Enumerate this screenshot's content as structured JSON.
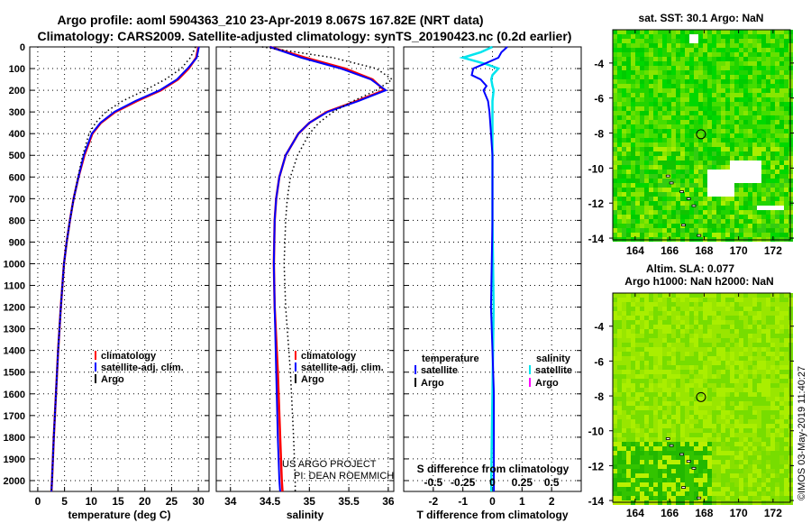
{
  "title_line1": "Argo profile: aoml 5904363_210 23-Apr-2019 8.067S 167.82E (NRT data)",
  "title_line2": "Climatology: CARS2009. Satellite-adjusted climatology: synTS_20190423.nc (0.2d earlier)",
  "credit": "US ARGO PROJECT",
  "pi": "PI: DEAN ROEMMICH",
  "stamp": "©IMOS 03-May-2019 11:40:27",
  "colors": {
    "climatology": "#ff0000",
    "satellite": "#0000ff",
    "argo": "#000000",
    "sal_satellite": "#00e5ee",
    "sal_argo": "#ff00ff"
  },
  "chart_data": [
    {
      "type": "line",
      "xlabel": "temperature (deg C)",
      "ylabel": "",
      "xlim": [
        -1.5,
        32
      ],
      "ylim": [
        2050,
        0
      ],
      "xticks": [
        0,
        5,
        10,
        15,
        20,
        25,
        30
      ],
      "yticks": [
        0,
        100,
        200,
        300,
        400,
        500,
        600,
        700,
        800,
        900,
        1000,
        1100,
        1200,
        1300,
        1400,
        1500,
        1600,
        1700,
        1800,
        1900,
        2000
      ],
      "legend": [
        "climatology",
        "satellite-adj. clim.",
        "Argo"
      ],
      "legend_position": "bottom-center",
      "depth": [
        0,
        50,
        100,
        150,
        200,
        250,
        300,
        350,
        400,
        500,
        600,
        700,
        800,
        900,
        1000,
        1200,
        1400,
        1600,
        1800,
        2000,
        2050
      ],
      "series": [
        {
          "name": "climatology",
          "values": [
            30,
            29.6,
            28.2,
            26.2,
            23,
            18.5,
            14.5,
            11.8,
            10.2,
            8.7,
            7.6,
            6.7,
            6,
            5.4,
            4.9,
            4.3,
            3.8,
            3.4,
            3,
            2.65,
            2.55
          ]
        },
        {
          "name": "satellite-adj. clim.",
          "values": [
            30.1,
            29.7,
            28,
            26,
            22.8,
            18.2,
            14.3,
            11.7,
            10.1,
            8.6,
            7.6,
            6.7,
            6,
            5.4,
            4.9,
            4.3,
            3.8,
            3.4,
            3,
            2.65,
            2.55
          ]
        },
        {
          "name": "Argo",
          "values": [
            29.5,
            28.5,
            26.8,
            23.8,
            20,
            15.8,
            12.7,
            10.8,
            9.6,
            8.4,
            7.5,
            6.7,
            6,
            5.4,
            4.9,
            4.3,
            3.8,
            3.4,
            3,
            2.65,
            2.55
          ]
        }
      ]
    },
    {
      "type": "line",
      "xlabel": "salinity",
      "xlim": [
        33.82,
        36.07
      ],
      "ylim": [
        2050,
        0
      ],
      "xticks": [
        34,
        34.5,
        35,
        35.5,
        36
      ],
      "xticklabels": [
        "34",
        "34.5",
        "35",
        "35.5",
        "36"
      ],
      "legend": [
        "climatology",
        "satellite-adj. clim.",
        "Argo"
      ],
      "legend_position": "bottom-right",
      "depth": [
        0,
        50,
        100,
        150,
        200,
        250,
        300,
        350,
        400,
        500,
        600,
        700,
        800,
        1000,
        1200,
        1500,
        1800,
        2000,
        2050
      ],
      "series": [
        {
          "name": "climatology",
          "values": [
            34.5,
            34.95,
            35.45,
            35.8,
            35.95,
            35.6,
            35.22,
            35,
            34.86,
            34.7,
            34.62,
            34.58,
            34.56,
            34.55,
            34.56,
            34.6,
            34.63,
            34.65,
            34.66
          ]
        },
        {
          "name": "satellite-adj. clim.",
          "values": [
            34.5,
            34.9,
            35.4,
            35.78,
            35.97,
            35.62,
            35.23,
            35,
            34.86,
            34.7,
            34.62,
            34.58,
            34.56,
            34.55,
            34.56,
            34.58,
            34.6,
            34.62,
            34.63
          ]
        },
        {
          "name": "Argo",
          "values": [
            34.4,
            35.3,
            35.85,
            36.05,
            35.85,
            35.55,
            35.3,
            35.12,
            35.0,
            34.85,
            34.76,
            34.72,
            34.7,
            34.68,
            34.7,
            34.76,
            34.8,
            34.82,
            34.82
          ]
        }
      ]
    },
    {
      "type": "line",
      "xlabel": "T difference from climatology",
      "xlabel2": "S difference from climatology",
      "xlim": [
        -3,
        3
      ],
      "ylim": [
        2050,
        0
      ],
      "xticks": [
        -2,
        -1,
        0,
        1,
        2
      ],
      "xticks2": [
        -0.5,
        -0.25,
        0,
        0.25,
        0.5
      ],
      "xticklabels2": [
        "-0.5",
        "-0.25",
        "0",
        "0.25",
        "0.5"
      ],
      "legend_titles": [
        "temperature",
        "salinity"
      ],
      "legend_t": [
        "satellite",
        "Argo"
      ],
      "legend_s": [
        "satellite",
        "Argo"
      ],
      "depth": [
        0,
        25,
        50,
        80,
        100,
        130,
        150,
        180,
        200,
        250,
        300,
        400,
        500,
        800,
        1200,
        1600,
        2000,
        2050
      ],
      "series": [
        {
          "name": "temperature satellite",
          "values": [
            0.5,
            0.3,
            0.2,
            -0.3,
            -0.65,
            -0.7,
            -0.4,
            -0.2,
            -0.3,
            -0.15,
            -0.1,
            -0.05,
            0,
            0,
            -0.05,
            0.05,
            0.05,
            0.05
          ]
        },
        {
          "name": "salinity satellite",
          "values": [
            0,
            -0.1,
            -0.25,
            -0.05,
            0.05,
            0,
            -0.01,
            0,
            0.01,
            0,
            0,
            0,
            0,
            0,
            0.01,
            0,
            -0.01,
            -0.01
          ]
        }
      ]
    },
    {
      "type": "heatmap",
      "title": "sat. SST: 30.1 Argo: NaN",
      "xlim": [
        162.7,
        173
      ],
      "ylim": [
        -14.1,
        -2.1
      ],
      "xticks": [
        164,
        166,
        168,
        170,
        172
      ],
      "yticks": [
        -4,
        -6,
        -8,
        -10,
        -12,
        -14
      ],
      "marker": {
        "lon": 167.82,
        "lat": -8.067
      }
    },
    {
      "type": "heatmap",
      "title": "Altim. SLA: 0.077",
      "subtitle": "Argo h1000: NaN h2000: NaN",
      "xlim": [
        162.7,
        173
      ],
      "ylim": [
        -14.1,
        -2.1
      ],
      "xticks": [
        164,
        166,
        168,
        170,
        172
      ],
      "yticks": [
        -4,
        -6,
        -8,
        -10,
        -12,
        -14
      ],
      "marker": {
        "lon": 167.82,
        "lat": -8.067
      }
    }
  ]
}
